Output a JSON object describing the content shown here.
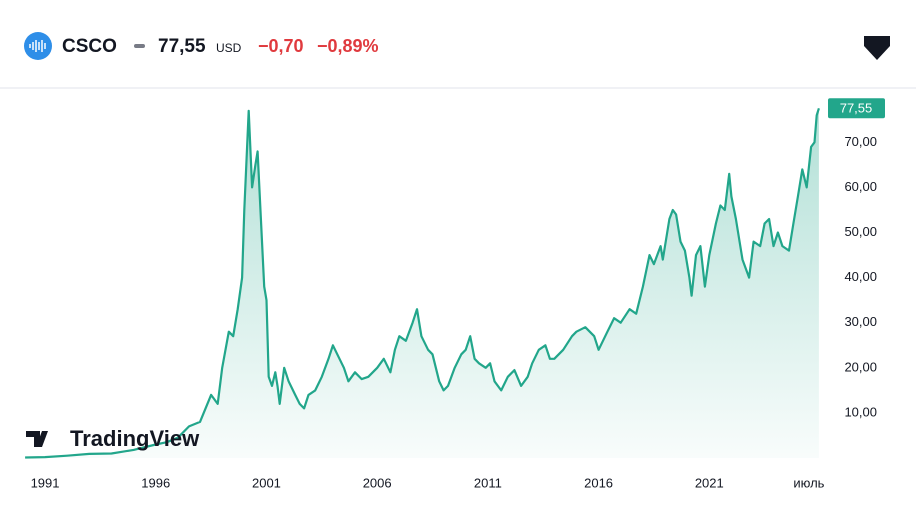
{
  "header": {
    "ticker": "CSCO",
    "price": "77,55",
    "currency": "USD",
    "change": "−0,70",
    "change_percent": "−0,89%"
  },
  "logo": "TradingView",
  "chart_data": {
    "type": "area",
    "color": "#22a68b",
    "x": [
      1990.1,
      1991,
      1992,
      1993,
      1994,
      1995,
      1996,
      1996.5,
      1997,
      1997.5,
      1998,
      1998.5,
      1998.8,
      1999,
      1999.3,
      1999.5,
      1999.7,
      1999.9,
      2000.0,
      2000.2,
      2000.35,
      2000.5,
      2000.6,
      2000.75,
      2000.9,
      2001.0,
      2001.1,
      2001.25,
      2001.4,
      2001.5,
      2001.6,
      2001.8,
      2002.0,
      2002.3,
      2002.5,
      2002.7,
      2002.9,
      2003.2,
      2003.5,
      2003.8,
      2004.0,
      2004.2,
      2004.5,
      2004.7,
      2005,
      2005.3,
      2005.6,
      2006,
      2006.3,
      2006.6,
      2006.8,
      2007.0,
      2007.3,
      2007.6,
      2007.8,
      2008.0,
      2008.3,
      2008.5,
      2008.8,
      2009.0,
      2009.2,
      2009.5,
      2009.8,
      2010.0,
      2010.2,
      2010.4,
      2010.6,
      2010.9,
      2011.1,
      2011.3,
      2011.6,
      2011.9,
      2012.2,
      2012.5,
      2012.8,
      2013.0,
      2013.3,
      2013.6,
      2013.8,
      2014.0,
      2014.4,
      2014.8,
      2015.0,
      2015.4,
      2015.8,
      2016.0,
      2016.4,
      2016.7,
      2017.0,
      2017.4,
      2017.7,
      2018.0,
      2018.3,
      2018.5,
      2018.8,
      2018.9,
      2019.2,
      2019.35,
      2019.5,
      2019.7,
      2019.9,
      2020.1,
      2020.2,
      2020.4,
      2020.6,
      2020.8,
      2021.0,
      2021.3,
      2021.5,
      2021.7,
      2021.9,
      2022.0,
      2022.2,
      2022.5,
      2022.8,
      2023.0,
      2023.3,
      2023.5,
      2023.7,
      2023.9,
      2024.1,
      2024.3,
      2024.6,
      2024.8,
      2025.0,
      2025.2,
      2025.4,
      2025.6,
      2025.75,
      2025.85,
      2025.95
    ],
    "values": [
      0.1,
      0.2,
      0.5,
      0.9,
      1.0,
      1.8,
      3.0,
      3.5,
      4.5,
      7,
      8,
      14,
      12,
      20,
      28,
      27,
      33,
      40,
      55,
      77,
      60,
      65,
      68,
      53,
      38,
      35,
      18,
      16,
      19,
      16,
      12,
      20,
      17,
      14,
      12,
      11,
      14,
      15,
      18,
      22,
      25,
      23,
      20,
      17,
      19,
      17.5,
      18,
      20,
      22,
      19,
      24,
      27,
      26,
      30,
      33,
      27,
      24,
      23,
      17,
      15,
      16,
      20,
      23,
      24,
      27,
      22,
      21,
      20,
      21,
      17,
      15,
      18,
      19.5,
      16,
      18,
      21,
      24,
      25,
      22,
      22,
      24,
      27,
      28,
      29,
      27,
      24,
      28,
      31,
      30,
      33,
      32,
      38,
      45,
      43,
      47,
      44,
      53,
      55,
      54,
      48,
      46,
      40,
      36,
      45,
      47,
      38,
      45,
      52,
      56,
      55,
      63,
      58,
      53,
      44,
      40,
      48,
      47,
      52,
      53,
      47,
      50,
      47,
      46,
      52,
      58,
      64,
      60,
      69,
      70,
      76,
      77.55
    ],
    "xlim": [
      1990.05,
      2026
    ],
    "xticks": [
      {
        "value": 1991,
        "label": "1991"
      },
      {
        "value": 1996,
        "label": "1996"
      },
      {
        "value": 2001,
        "label": "2001"
      },
      {
        "value": 2006,
        "label": "2006"
      },
      {
        "value": 2011,
        "label": "2011"
      },
      {
        "value": 2016,
        "label": "2016"
      },
      {
        "value": 2021,
        "label": "2021"
      },
      {
        "value": 2025.5,
        "label": "июль"
      }
    ],
    "ylim": [
      0,
      80.5
    ],
    "yticks": [
      {
        "value": 10,
        "label": "10,00"
      },
      {
        "value": 20,
        "label": "20,00"
      },
      {
        "value": 30,
        "label": "30,00"
      },
      {
        "value": 40,
        "label": "40,00"
      },
      {
        "value": 50,
        "label": "50,00"
      },
      {
        "value": 60,
        "label": "60,00"
      },
      {
        "value": 70,
        "label": "70,00"
      }
    ],
    "grid": false
  }
}
